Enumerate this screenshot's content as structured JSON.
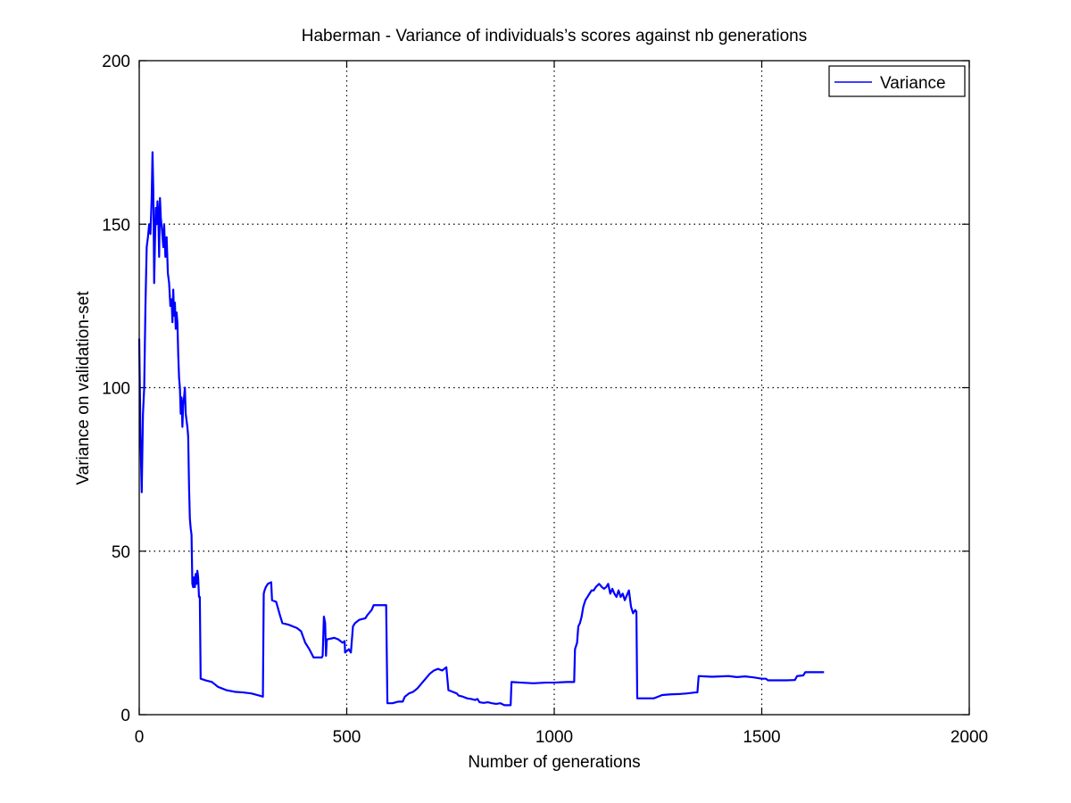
{
  "chart_data": {
    "type": "line",
    "title": "Haberman - Variance of individuals’s scores against nb generations",
    "xlabel": "Number of generations",
    "ylabel": "Variance on validation-set",
    "xlim": [
      0,
      2000
    ],
    "ylim": [
      0,
      200
    ],
    "xticks": [
      0,
      500,
      1000,
      1500,
      2000
    ],
    "yticks": [
      0,
      50,
      100,
      150,
      200
    ],
    "grid": true,
    "legend": {
      "position": "top-right",
      "entries": [
        "Variance"
      ]
    },
    "line_color": "#0000ff",
    "series": [
      {
        "name": "Variance",
        "points": [
          [
            0,
            115
          ],
          [
            3,
            85
          ],
          [
            6,
            68
          ],
          [
            9,
            92
          ],
          [
            12,
            100
          ],
          [
            15,
            125
          ],
          [
            18,
            143
          ],
          [
            21,
            146
          ],
          [
            24,
            150
          ],
          [
            27,
            147
          ],
          [
            30,
            158
          ],
          [
            32,
            172
          ],
          [
            34,
            160
          ],
          [
            36,
            132
          ],
          [
            38,
            145
          ],
          [
            40,
            155
          ],
          [
            42,
            150
          ],
          [
            44,
            157
          ],
          [
            46,
            153
          ],
          [
            48,
            140
          ],
          [
            50,
            158
          ],
          [
            52,
            152
          ],
          [
            55,
            148
          ],
          [
            58,
            143
          ],
          [
            60,
            150
          ],
          [
            63,
            140
          ],
          [
            66,
            146
          ],
          [
            69,
            135
          ],
          [
            72,
            132
          ],
          [
            75,
            125
          ],
          [
            78,
            127
          ],
          [
            80,
            120
          ],
          [
            82,
            130
          ],
          [
            84,
            122
          ],
          [
            86,
            126
          ],
          [
            88,
            118
          ],
          [
            90,
            123
          ],
          [
            92,
            120
          ],
          [
            94,
            110
          ],
          [
            96,
            103
          ],
          [
            98,
            100
          ],
          [
            100,
            92
          ],
          [
            102,
            97
          ],
          [
            104,
            88
          ],
          [
            106,
            95
          ],
          [
            108,
            97
          ],
          [
            110,
            100
          ],
          [
            112,
            92
          ],
          [
            114,
            90
          ],
          [
            116,
            88
          ],
          [
            118,
            85
          ],
          [
            120,
            70
          ],
          [
            122,
            60
          ],
          [
            124,
            57
          ],
          [
            126,
            55
          ],
          [
            128,
            40
          ],
          [
            130,
            39
          ],
          [
            132,
            42
          ],
          [
            134,
            39
          ],
          [
            136,
            43
          ],
          [
            138,
            40
          ],
          [
            140,
            44
          ],
          [
            142,
            42
          ],
          [
            144,
            36
          ],
          [
            146,
            36
          ],
          [
            148,
            11
          ],
          [
            160,
            10.5
          ],
          [
            175,
            10
          ],
          [
            180,
            9.5
          ],
          [
            190,
            8.5
          ],
          [
            200,
            8
          ],
          [
            210,
            7.5
          ],
          [
            230,
            7
          ],
          [
            250,
            6.8
          ],
          [
            270,
            6.5
          ],
          [
            290,
            5.8
          ],
          [
            298,
            5.5
          ],
          [
            300,
            37
          ],
          [
            302,
            38
          ],
          [
            305,
            39
          ],
          [
            310,
            40
          ],
          [
            318,
            40.5
          ],
          [
            320,
            35
          ],
          [
            330,
            34.5
          ],
          [
            340,
            30
          ],
          [
            345,
            28
          ],
          [
            360,
            27.5
          ],
          [
            380,
            26.5
          ],
          [
            390,
            25.5
          ],
          [
            400,
            22
          ],
          [
            410,
            20
          ],
          [
            420,
            17.5
          ],
          [
            440,
            17.5
          ],
          [
            442,
            18
          ],
          [
            445,
            30
          ],
          [
            448,
            28
          ],
          [
            450,
            18
          ],
          [
            452,
            23
          ],
          [
            470,
            23.5
          ],
          [
            480,
            23
          ],
          [
            490,
            22
          ],
          [
            495,
            22.5
          ],
          [
            496,
            19
          ],
          [
            505,
            20
          ],
          [
            510,
            19
          ],
          [
            515,
            27
          ],
          [
            520,
            28
          ],
          [
            530,
            29
          ],
          [
            545,
            29.5
          ],
          [
            550,
            30.5
          ],
          [
            560,
            32
          ],
          [
            565,
            33.5
          ],
          [
            595,
            33.5
          ],
          [
            598,
            3.5
          ],
          [
            610,
            3.5
          ],
          [
            625,
            4
          ],
          [
            635,
            4
          ],
          [
            640,
            5.5
          ],
          [
            650,
            6.5
          ],
          [
            660,
            7
          ],
          [
            670,
            8
          ],
          [
            680,
            9.5
          ],
          [
            690,
            11
          ],
          [
            700,
            12.5
          ],
          [
            710,
            13.5
          ],
          [
            720,
            14
          ],
          [
            730,
            13.5
          ],
          [
            740,
            14.5
          ],
          [
            745,
            7.5
          ],
          [
            755,
            7
          ],
          [
            765,
            6.5
          ],
          [
            770,
            5.8
          ],
          [
            780,
            5.5
          ],
          [
            790,
            5
          ],
          [
            800,
            4.8
          ],
          [
            810,
            4.5
          ],
          [
            815,
            4.8
          ],
          [
            820,
            3.8
          ],
          [
            830,
            3.6
          ],
          [
            840,
            3.8
          ],
          [
            850,
            3.5
          ],
          [
            860,
            3.3
          ],
          [
            870,
            3.5
          ],
          [
            875,
            3.2
          ],
          [
            880,
            2.9
          ],
          [
            895,
            2.9
          ],
          [
            897,
            10
          ],
          [
            920,
            9.8
          ],
          [
            950,
            9.6
          ],
          [
            980,
            9.8
          ],
          [
            1000,
            9.8
          ],
          [
            1030,
            10
          ],
          [
            1048,
            10
          ],
          [
            1050,
            20
          ],
          [
            1055,
            22
          ],
          [
            1058,
            27
          ],
          [
            1062,
            28
          ],
          [
            1066,
            30
          ],
          [
            1070,
            33
          ],
          [
            1075,
            35
          ],
          [
            1080,
            36
          ],
          [
            1085,
            37
          ],
          [
            1090,
            38
          ],
          [
            1095,
            38
          ],
          [
            1100,
            39
          ],
          [
            1108,
            40
          ],
          [
            1115,
            39
          ],
          [
            1120,
            38.5
          ],
          [
            1125,
            39
          ],
          [
            1130,
            40
          ],
          [
            1135,
            37
          ],
          [
            1140,
            38.5
          ],
          [
            1145,
            37
          ],
          [
            1150,
            36
          ],
          [
            1155,
            38
          ],
          [
            1160,
            36
          ],
          [
            1165,
            37
          ],
          [
            1170,
            35
          ],
          [
            1175,
            36.5
          ],
          [
            1180,
            38
          ],
          [
            1185,
            33
          ],
          [
            1190,
            31
          ],
          [
            1195,
            32
          ],
          [
            1198,
            31.5
          ],
          [
            1200,
            5
          ],
          [
            1240,
            5
          ],
          [
            1250,
            5.5
          ],
          [
            1260,
            6
          ],
          [
            1280,
            6.2
          ],
          [
            1300,
            6.3
          ],
          [
            1320,
            6.5
          ],
          [
            1340,
            6.8
          ],
          [
            1345,
            6.8
          ],
          [
            1348,
            11.8
          ],
          [
            1380,
            11.6
          ],
          [
            1420,
            11.8
          ],
          [
            1440,
            11.5
          ],
          [
            1460,
            11.7
          ],
          [
            1480,
            11.4
          ],
          [
            1500,
            11
          ],
          [
            1510,
            11
          ],
          [
            1515,
            10.5
          ],
          [
            1560,
            10.5
          ],
          [
            1580,
            10.6
          ],
          [
            1585,
            11.8
          ],
          [
            1600,
            12
          ],
          [
            1605,
            13
          ],
          [
            1620,
            13
          ],
          [
            1650,
            13
          ]
        ]
      }
    ]
  }
}
